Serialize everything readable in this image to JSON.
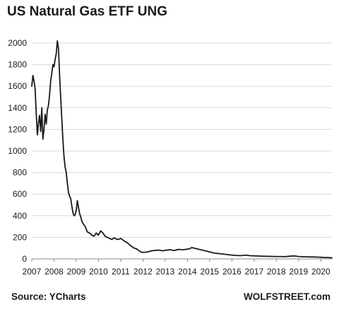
{
  "title": "US Natural Gas ETF UNG",
  "source": "Source: YCharts",
  "brand": "WOLFSTREET.com",
  "colors": {
    "line": "#1a1a1a",
    "grid": "#d9d9d9",
    "axis": "#888888"
  },
  "chart_data": {
    "type": "line",
    "title": "US Natural Gas ETF UNG",
    "xlabel": "",
    "ylabel": "",
    "ylim": [
      0,
      2000
    ],
    "xlim": [
      2007.0,
      2020.5
    ],
    "grid": true,
    "legend": "none",
    "y_ticks": [
      0,
      200,
      400,
      600,
      800,
      1000,
      1200,
      1400,
      1600,
      1800,
      2000
    ],
    "x_ticks": [
      "2007",
      "2008",
      "2009",
      "2010",
      "2011",
      "2012",
      "2013",
      "2014",
      "2015",
      "2016",
      "2017",
      "2018",
      "2019",
      "2020"
    ],
    "series": [
      {
        "name": "",
        "x": [
          2007.0,
          2007.05,
          2007.1,
          2007.15,
          2007.2,
          2007.25,
          2007.3,
          2007.35,
          2007.4,
          2007.45,
          2007.5,
          2007.55,
          2007.6,
          2007.65,
          2007.7,
          2007.75,
          2007.8,
          2007.85,
          2007.9,
          2007.95,
          2008.0,
          2008.05,
          2008.1,
          2008.15,
          2008.2,
          2008.25,
          2008.3,
          2008.35,
          2008.4,
          2008.45,
          2008.5,
          2008.55,
          2008.6,
          2008.65,
          2008.7,
          2008.75,
          2008.8,
          2008.85,
          2008.9,
          2008.95,
          2009.0,
          2009.05,
          2009.1,
          2009.15,
          2009.2,
          2009.25,
          2009.3,
          2009.4,
          2009.5,
          2009.6,
          2009.7,
          2009.8,
          2009.9,
          2010.0,
          2010.1,
          2010.2,
          2010.3,
          2010.4,
          2010.5,
          2010.6,
          2010.7,
          2010.8,
          2010.9,
          2011.0,
          2011.1,
          2011.2,
          2011.3,
          2011.4,
          2011.5,
          2011.6,
          2011.7,
          2011.8,
          2011.9,
          2012.0,
          2012.1,
          2012.2,
          2012.3,
          2012.4,
          2012.5,
          2012.6,
          2012.7,
          2012.8,
          2012.9,
          2013.0,
          2013.2,
          2013.4,
          2013.6,
          2013.8,
          2014.0,
          2014.1,
          2014.2,
          2014.3,
          2014.4,
          2014.5,
          2014.6,
          2014.8,
          2015.0,
          2015.2,
          2015.4,
          2015.6,
          2015.8,
          2016.0,
          2016.2,
          2016.4,
          2016.6,
          2016.8,
          2017.0,
          2017.2,
          2017.4,
          2017.6,
          2017.8,
          2018.0,
          2018.2,
          2018.4,
          2018.6,
          2018.8,
          2019.0,
          2019.2,
          2019.4,
          2019.6,
          2019.8,
          2020.0,
          2020.2,
          2020.4,
          2020.5
        ],
        "values": [
          1600,
          1700,
          1650,
          1580,
          1350,
          1150,
          1250,
          1330,
          1180,
          1400,
          1110,
          1200,
          1340,
          1250,
          1380,
          1420,
          1520,
          1650,
          1720,
          1800,
          1780,
          1850,
          1900,
          2020,
          1950,
          1700,
          1500,
          1300,
          1100,
          950,
          850,
          800,
          700,
          620,
          580,
          560,
          490,
          430,
          400,
          410,
          450,
          540,
          480,
          420,
          390,
          350,
          330,
          300,
          250,
          240,
          220,
          210,
          240,
          220,
          260,
          240,
          210,
          200,
          190,
          180,
          195,
          185,
          180,
          190,
          175,
          160,
          150,
          130,
          115,
          100,
          95,
          80,
          65,
          60,
          62,
          65,
          70,
          75,
          78,
          80,
          82,
          78,
          75,
          80,
          85,
          78,
          88,
          85,
          90,
          95,
          105,
          100,
          95,
          90,
          85,
          75,
          65,
          55,
          50,
          45,
          40,
          35,
          32,
          30,
          35,
          30,
          28,
          27,
          25,
          24,
          23,
          22,
          22,
          21,
          25,
          28,
          22,
          20,
          19,
          18,
          17,
          15,
          13,
          12,
          10
        ]
      }
    ]
  }
}
